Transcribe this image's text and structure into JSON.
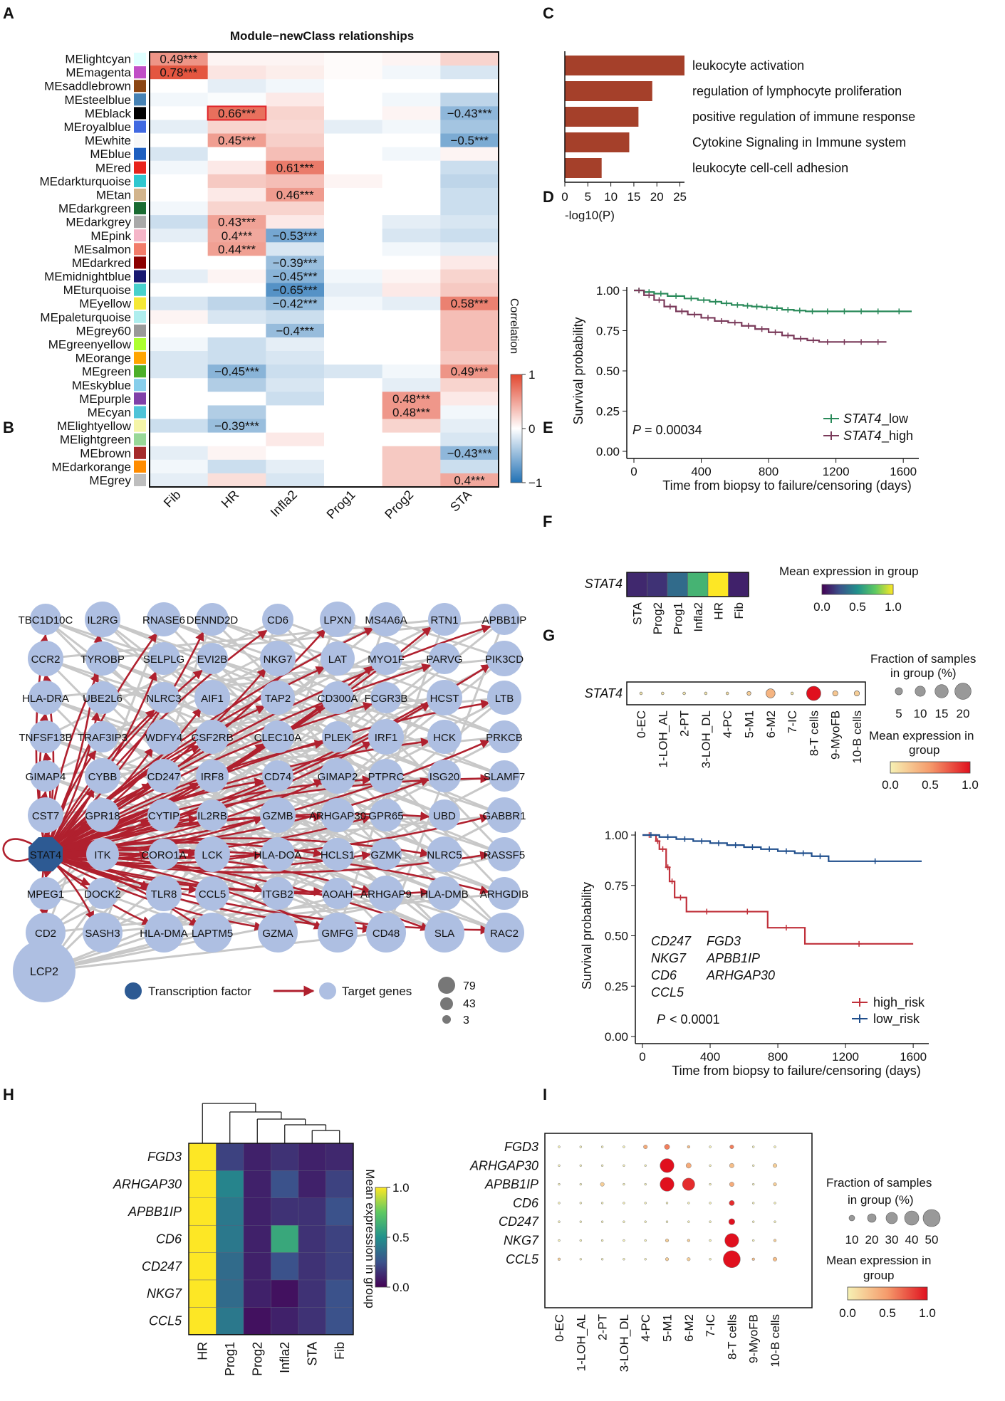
{
  "panel_labels": {
    "A": "A",
    "B": "B",
    "C": "C",
    "D": "D",
    "E": "E",
    "F": "F",
    "G": "G",
    "H": "H",
    "I": "I"
  },
  "panelA": {
    "title": "Module−newClass relationships",
    "colorbar_title": "Correlation",
    "colorbar_ticks": [
      "1",
      "0",
      "−1"
    ],
    "highlight_module": "MEblack",
    "highlight_column": "HR",
    "columns": [
      "Fib",
      "HR",
      "Infla2",
      "Prog1",
      "Prog2",
      "STA"
    ],
    "modules": [
      "MElightcyan",
      "MEmagenta",
      "MEsaddlebrown",
      "MEsteelblue",
      "MEblack",
      "MEroyalblue",
      "MEwhite",
      "MEblue",
      "MEred",
      "MEdarkturquoise",
      "MEtan",
      "MEdarkgreen",
      "MEdarkgrey",
      "MEpink",
      "MEsalmon",
      "MEdarkred",
      "MEmidnightblue",
      "MEturquoise",
      "MEyellow",
      "MEpaleturquoise",
      "MEgrey60",
      "MEgreenyellow",
      "MEorange",
      "MEgreen",
      "MEskyblue",
      "MEpurple",
      "MEcyan",
      "MElightyellow",
      "MElightgreen",
      "MEbrown",
      "MEdarkorange",
      "MEgrey"
    ],
    "module_colors": [
      "#e0ffff",
      "#c04ec6",
      "#8b4513",
      "#4682b4",
      "#000000",
      "#4169e1",
      "#f8f8f8",
      "#1f5fbf",
      "#e8241c",
      "#2fc7cf",
      "#d2b48c",
      "#1a6b32",
      "#a9a9a9",
      "#f5b5c8",
      "#f27c6a",
      "#8b0000",
      "#191970",
      "#48d1cc",
      "#f5e836",
      "#aeeeee",
      "#999999",
      "#adff2f",
      "#ffa500",
      "#4caf28",
      "#87ceeb",
      "#8040a8",
      "#4fc3d8",
      "#f5f5a8",
      "#98d898",
      "#a52a2a",
      "#ff8c00",
      "#bebebe"
    ],
    "values": [
      [
        0.49,
        0.05,
        0.05,
        0.02,
        0.05,
        0.2
      ],
      [
        0.78,
        0.12,
        0.08,
        0.02,
        -0.05,
        -0.15
      ],
      [
        0.0,
        -0.1,
        -0.05,
        0.0,
        0.0,
        0.0
      ],
      [
        -0.05,
        -0.02,
        0.1,
        0.0,
        -0.05,
        -0.25
      ],
      [
        0.0,
        0.66,
        0.2,
        0.0,
        0.05,
        -0.43
      ],
      [
        -0.1,
        0.2,
        0.18,
        -0.1,
        -0.05,
        -0.35
      ],
      [
        0.0,
        0.45,
        0.22,
        0.0,
        0.0,
        -0.5
      ],
      [
        -0.15,
        0.0,
        0.3,
        0.0,
        -0.05,
        0.05
      ],
      [
        -0.05,
        0.1,
        0.61,
        0.0,
        0.0,
        -0.2
      ],
      [
        0.0,
        0.25,
        0.3,
        0.05,
        0.0,
        -0.25
      ],
      [
        0.0,
        0.1,
        0.46,
        0.0,
        0.0,
        -0.2
      ],
      [
        -0.05,
        0.2,
        0.2,
        0.0,
        0.0,
        -0.2
      ],
      [
        -0.2,
        0.43,
        0.1,
        0.0,
        -0.1,
        -0.15
      ],
      [
        -0.1,
        0.4,
        -0.53,
        0.0,
        -0.15,
        -0.2
      ],
      [
        0.0,
        0.44,
        -0.15,
        0.0,
        -0.05,
        -0.1
      ],
      [
        0.0,
        0.0,
        -0.39,
        0.0,
        0.0,
        0.1
      ],
      [
        -0.1,
        0.05,
        -0.45,
        -0.05,
        0.05,
        0.2
      ],
      [
        0.0,
        0.0,
        -0.65,
        -0.1,
        0.1,
        0.25
      ],
      [
        -0.15,
        -0.25,
        -0.42,
        -0.05,
        -0.1,
        0.58
      ],
      [
        0.05,
        -0.15,
        -0.2,
        0.0,
        0.0,
        0.3
      ],
      [
        0.0,
        0.0,
        -0.4,
        0.0,
        0.0,
        0.3
      ],
      [
        -0.05,
        -0.2,
        -0.1,
        0.0,
        0.0,
        0.3
      ],
      [
        -0.15,
        -0.2,
        -0.15,
        0.0,
        0.0,
        0.25
      ],
      [
        -0.15,
        -0.45,
        -0.2,
        -0.15,
        -0.05,
        0.49
      ],
      [
        0.0,
        -0.3,
        -0.15,
        0.0,
        -0.1,
        0.2
      ],
      [
        0.0,
        0.0,
        -0.2,
        0.0,
        0.48,
        0.1
      ],
      [
        0.0,
        -0.3,
        0.0,
        0.0,
        0.48,
        -0.05
      ],
      [
        -0.2,
        -0.39,
        0.0,
        0.0,
        0.2,
        -0.1
      ],
      [
        0.0,
        0.0,
        0.1,
        0.0,
        0.0,
        -0.15
      ],
      [
        -0.1,
        0.05,
        0.0,
        0.0,
        0.25,
        -0.43
      ],
      [
        -0.05,
        -0.2,
        -0.1,
        0.0,
        0.25,
        -0.2
      ],
      [
        -0.1,
        0.15,
        -0.15,
        0.0,
        0.25,
        0.4
      ]
    ],
    "labels": [
      [
        0,
        0,
        "0.49***"
      ],
      [
        1,
        0,
        "0.78***"
      ],
      [
        4,
        1,
        "0.66***"
      ],
      [
        4,
        5,
        "-0.43***"
      ],
      [
        6,
        1,
        "0.45***"
      ],
      [
        6,
        5,
        "-0.5***"
      ],
      [
        8,
        2,
        "0.61***"
      ],
      [
        10,
        2,
        "0.46***"
      ],
      [
        12,
        1,
        "0.43***"
      ],
      [
        13,
        1,
        "0.4***"
      ],
      [
        13,
        2,
        "-0.53***"
      ],
      [
        14,
        1,
        "0.44***"
      ],
      [
        15,
        2,
        "-0.39***"
      ],
      [
        16,
        2,
        "-0.45***"
      ],
      [
        17,
        2,
        "-0.65***"
      ],
      [
        18,
        2,
        "-0.42***"
      ],
      [
        18,
        5,
        "0.58***"
      ],
      [
        20,
        2,
        "-0.4***"
      ],
      [
        23,
        1,
        "-0.45***"
      ],
      [
        23,
        5,
        "0.49***"
      ],
      [
        25,
        4,
        "0.48***"
      ],
      [
        26,
        4,
        "0.48***"
      ],
      [
        27,
        1,
        "-0.39***"
      ],
      [
        29,
        5,
        "-0.43***"
      ],
      [
        31,
        5,
        "0.4***"
      ]
    ]
  },
  "panelB": {
    "nodes_grid": [
      [
        "TBC1D10C",
        "IL2RG",
        "RNASE6",
        "DENND2D",
        "CD6",
        "LPXN",
        "MS4A6A",
        "RTN1",
        "APBB1IP"
      ],
      [
        "CCR2",
        "TYROBP",
        "SELPLG",
        "EVI2B",
        "NKG7",
        "LAT",
        "MYO1F",
        "PARVG",
        "PIK3CD"
      ],
      [
        "HLA-DRA",
        "UBE2L6",
        "NLRC3",
        "AIF1",
        "TAP2",
        "CD300A",
        "FCGR3B",
        "HCST",
        "LTB"
      ],
      [
        "TNFSF13B",
        "TRAF3IP3",
        "WDFY4",
        "CSF2RB",
        "CLEC10A",
        "PLEK",
        "IRF1",
        "HCK",
        "PRKCB"
      ],
      [
        "GIMAP4",
        "CYBB",
        "CD247",
        "IRF8",
        "CD74",
        "GIMAP2",
        "PTPRC",
        "ISG20",
        "SLAMF7"
      ],
      [
        "CST7",
        "GPR18",
        "CYTIP",
        "IL2RB",
        "GZMB",
        "ARHGAP30",
        "GPR65",
        "UBD",
        "GABBR1"
      ],
      [
        "STAT4",
        "ITK",
        "CORO1A",
        "LCK",
        "HLA-DOA",
        "HCLS1",
        "GZMK",
        "NLRC5",
        "RASSF5"
      ],
      [
        "MPEG1",
        "DOCK2",
        "TLR8",
        "CCL5",
        "ITGB2",
        "AOAH",
        "ARHGAP9",
        "HLA-DMB",
        "ARHGDIB"
      ],
      [
        "CD2",
        "SASH3",
        "HLA-DMA",
        "LAPTM5",
        "GZMA",
        "GMFG",
        "CD48",
        "SLA",
        "RAC2"
      ]
    ],
    "extra_node": "LCP2",
    "tf_node": "STAT4",
    "legend_tf": "Transcription factor",
    "legend_target": "Target genes",
    "size_legend": [
      "79",
      "43",
      "3"
    ]
  },
  "panelC": {
    "chart_data": {
      "type": "bar",
      "orientation": "horizontal",
      "categories": [
        "leukocyte activation",
        "regulation of lymphocyte proliferation",
        "positive regulation of immune response",
        "Cytokine Signaling in Immune system",
        "leukocyte cell-cell adhesion"
      ],
      "values": [
        26,
        19,
        16,
        14,
        8
      ],
      "xlabel": "-log10(P)",
      "xticks": [
        "0",
        "5",
        "10",
        "15",
        "20",
        "25"
      ],
      "xlim": [
        0,
        26
      ]
    }
  },
  "panelD": {
    "chart_data": {
      "type": "line",
      "title": "",
      "xlabel": "Time from biopsy to failure/censoring (days)",
      "ylabel": "Survival probability",
      "xticks": [
        "0",
        "400",
        "800",
        "1200",
        "1600"
      ],
      "yticks": [
        "1.00",
        "0.75",
        "0.50",
        "0.25",
        "0.00"
      ],
      "xlim": [
        0,
        1650
      ],
      "ylim": [
        0,
        1
      ],
      "pvalue": "= 0.00034",
      "pvalue_prefix": "P",
      "series": [
        {
          "name": "_low",
          "gene": "STAT4",
          "color": "#2a8a5a",
          "x": [
            0,
            60,
            120,
            200,
            300,
            380,
            450,
            520,
            580,
            650,
            700,
            760,
            820,
            880,
            950,
            1020,
            1100,
            1200,
            1300,
            1400,
            1500,
            1650
          ],
          "y": [
            1.0,
            0.99,
            0.98,
            0.965,
            0.95,
            0.94,
            0.93,
            0.92,
            0.91,
            0.905,
            0.9,
            0.895,
            0.89,
            0.88,
            0.875,
            0.87,
            0.87,
            0.87,
            0.87,
            0.87,
            0.87,
            0.87
          ]
        },
        {
          "name": "_high",
          "gene": "STAT4",
          "color": "#7a3a5a",
          "x": [
            0,
            60,
            120,
            180,
            250,
            320,
            400,
            480,
            560,
            640,
            720,
            800,
            880,
            950,
            1030,
            1100,
            1200,
            1300,
            1400,
            1500
          ],
          "y": [
            1.0,
            0.97,
            0.94,
            0.9,
            0.87,
            0.85,
            0.83,
            0.81,
            0.8,
            0.78,
            0.76,
            0.74,
            0.72,
            0.7,
            0.69,
            0.68,
            0.68,
            0.68,
            0.68,
            0.68
          ]
        }
      ]
    }
  },
  "panelE": {
    "gene": "STAT4",
    "chart_data": {
      "type": "heatmap",
      "categories": [
        "STA",
        "Prog2",
        "Prog1",
        "Infla2",
        "HR",
        "Fib"
      ],
      "values": [
        0.12,
        0.15,
        0.35,
        0.65,
        1.0,
        0.1
      ],
      "colorbar_title": "Mean expression in group",
      "colorbar_ticks": [
        "0.0",
        "0.5",
        "1.0"
      ]
    },
    "highlight": "HR"
  },
  "panelF": {
    "gene": "STAT4",
    "chart_data": {
      "type": "scatter",
      "categories": [
        "0-EC",
        "1-LOH_AL",
        "2-PT",
        "3-LOH_DL",
        "4-PC",
        "5-M1",
        "6-M2",
        "7-IC",
        "8-T cells",
        "9-MyoFB",
        "10-B cells"
      ],
      "fraction": [
        2,
        2,
        2,
        2,
        2,
        4,
        12,
        2,
        20,
        6,
        6
      ],
      "expression": [
        0.05,
        0.05,
        0.05,
        0.05,
        0.1,
        0.2,
        0.35,
        0.05,
        1.0,
        0.25,
        0.2
      ]
    },
    "highlight": "8-T cells",
    "size_legend_title": "Fraction of samples in group (%)",
    "size_legend_ticks": [
      "5",
      "10",
      "15",
      "20"
    ],
    "color_legend_title": "Mean expression in group",
    "color_legend_ticks": [
      "0.0",
      "0.5",
      "1.0"
    ]
  },
  "panelG": {
    "chart_data": {
      "type": "line",
      "xlabel": "Time from biopsy to failure/censoring (days)",
      "ylabel": "Survival probability",
      "xticks": [
        "0",
        "400",
        "800",
        "1200",
        "1600"
      ],
      "yticks": [
        "1.00",
        "0.75",
        "0.50",
        "0.25",
        "0.00"
      ],
      "xlim": [
        0,
        1650
      ],
      "ylim": [
        0,
        1
      ],
      "pvalue": "< 0.0001",
      "pvalue_prefix": "P",
      "series": [
        {
          "name": "high_risk",
          "color": "#c0303a",
          "x": [
            0,
            80,
            100,
            140,
            160,
            190,
            260,
            500,
            740,
            960,
            1600
          ],
          "y": [
            1.0,
            0.97,
            0.93,
            0.84,
            0.77,
            0.69,
            0.62,
            0.62,
            0.54,
            0.46,
            0.46
          ]
        },
        {
          "name": "low_risk",
          "color": "#1f4e8c",
          "x": [
            0,
            100,
            200,
            300,
            400,
            500,
            600,
            700,
            800,
            900,
            1000,
            1100,
            1650
          ],
          "y": [
            1.0,
            0.99,
            0.98,
            0.97,
            0.96,
            0.95,
            0.94,
            0.93,
            0.92,
            0.91,
            0.895,
            0.87,
            0.87
          ]
        }
      ]
    },
    "genes_blue": [
      "CD247",
      "NKG7",
      "CD6",
      "CCL5"
    ],
    "genes_grey": [
      "FGD3",
      "APBB1IP",
      "ARHGAP30"
    ]
  },
  "panelH": {
    "rows": [
      "FGD3",
      "ARHGAP30",
      "APBB1IP",
      "CD6",
      "CD247",
      "NKG7",
      "CCL5"
    ],
    "columns": [
      "HR",
      "Prog1",
      "Prog2",
      "Infla2",
      "STA",
      "Fib"
    ],
    "chart_data": {
      "type": "heatmap",
      "values": [
        [
          1.0,
          0.2,
          0.1,
          0.15,
          0.1,
          0.12
        ],
        [
          1.0,
          0.45,
          0.1,
          0.25,
          0.1,
          0.2
        ],
        [
          1.0,
          0.4,
          0.1,
          0.15,
          0.15,
          0.25
        ],
        [
          1.0,
          0.4,
          0.1,
          0.6,
          0.15,
          0.2
        ],
        [
          1.0,
          0.35,
          0.1,
          0.25,
          0.15,
          0.2
        ],
        [
          1.0,
          0.35,
          0.1,
          0.05,
          0.15,
          0.25
        ],
        [
          1.0,
          0.4,
          0.05,
          0.1,
          0.15,
          0.25
        ]
      ]
    },
    "colorbar_title": "Mean expression in group",
    "colorbar_ticks": [
      "1.0",
      "0.5",
      "0.0"
    ],
    "highlight": "HR"
  },
  "panelI": {
    "rows": [
      "FGD3",
      "ARHGAP30",
      "APBB1IP",
      "CD6",
      "CD247",
      "NKG7",
      "CCL5"
    ],
    "columns": [
      "0-EC",
      "1-LOH_AL",
      "2-PT",
      "3-LOH_DL",
      "4-PC",
      "5-M1",
      "6-M2",
      "7-IC",
      "8-T cells",
      "9-MyoFB",
      "10-B cells"
    ],
    "highlight": "8-T cells",
    "chart_data": {
      "type": "scatter",
      "fraction": [
        [
          2,
          2,
          2,
          2,
          8,
          12,
          4,
          2,
          8,
          2,
          2
        ],
        [
          2,
          2,
          2,
          2,
          2,
          40,
          12,
          2,
          10,
          2,
          8
        ],
        [
          2,
          2,
          8,
          2,
          2,
          40,
          35,
          2,
          10,
          2,
          6
        ],
        [
          2,
          2,
          2,
          2,
          2,
          2,
          2,
          2,
          12,
          2,
          2
        ],
        [
          2,
          2,
          2,
          2,
          2,
          2,
          2,
          2,
          15,
          2,
          2
        ],
        [
          2,
          2,
          2,
          2,
          2,
          6,
          4,
          2,
          40,
          2,
          4
        ],
        [
          4,
          2,
          2,
          2,
          2,
          6,
          6,
          2,
          50,
          4,
          8
        ]
      ],
      "expression": [
        [
          0.0,
          0.0,
          0.0,
          0.0,
          0.4,
          0.6,
          0.3,
          0.0,
          0.6,
          0.0,
          0.0
        ],
        [
          0.0,
          0.0,
          0.0,
          0.0,
          0.0,
          1.0,
          0.4,
          0.0,
          0.3,
          0.0,
          0.2
        ],
        [
          0.0,
          0.0,
          0.2,
          0.0,
          0.0,
          1.0,
          0.9,
          0.0,
          0.4,
          0.0,
          0.2
        ],
        [
          0.0,
          0.0,
          0.0,
          0.0,
          0.0,
          0.0,
          0.0,
          0.0,
          0.9,
          0.0,
          0.0
        ],
        [
          0.0,
          0.0,
          0.0,
          0.0,
          0.0,
          0.0,
          0.0,
          0.0,
          1.0,
          0.0,
          0.0
        ],
        [
          0.0,
          0.0,
          0.0,
          0.0,
          0.0,
          0.2,
          0.2,
          0.0,
          1.0,
          0.0,
          0.2
        ],
        [
          0.2,
          0.0,
          0.0,
          0.0,
          0.0,
          0.2,
          0.2,
          0.0,
          1.0,
          0.3,
          0.3
        ]
      ]
    },
    "size_legend_title": "Fraction of samples in group (%)",
    "size_legend_ticks": [
      "10",
      "20",
      "30",
      "40",
      "50"
    ],
    "color_legend_title": "Mean expression in group",
    "color_legend_ticks": [
      "0.0",
      "0.5",
      "1.0"
    ]
  }
}
